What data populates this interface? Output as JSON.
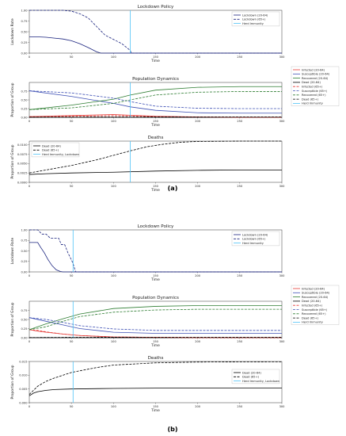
{
  "panel_labels": {
    "a": "(a)",
    "b": "(b)"
  },
  "colors": {
    "dark_blue": "#1a237e",
    "red": "#e53935",
    "blue": "#3f51b5",
    "green": "#2e7d32",
    "black": "#000000",
    "cyan": "#4fc3f7"
  },
  "chart_data": [
    {
      "id": "a_lockdown",
      "type": "line",
      "title": "Lockdown Policy",
      "xlabel": "Time",
      "ylabel": "Lockdown Rate",
      "xlim": [
        0,
        300
      ],
      "ylim": [
        0,
        1.0
      ],
      "xticks": [
        0,
        50,
        100,
        150,
        200,
        250,
        300
      ],
      "yticks": [
        {
          "v": 0.0,
          "t": "0.00"
        },
        {
          "v": 0.25,
          "t": "0.25"
        },
        {
          "v": 0.5,
          "t": "0.50"
        },
        {
          "v": 0.75,
          "t": "0.75"
        },
        {
          "v": 1.0,
          "t": "1.00"
        }
      ],
      "legend": "top-right",
      "series": [
        {
          "name": "Lockdown (20-64)",
          "color": "#1a237e",
          "dash": "",
          "x": [
            0,
            10,
            20,
            30,
            40,
            50,
            60,
            70,
            80,
            85,
            90,
            100,
            200,
            300
          ],
          "y": [
            0.38,
            0.38,
            0.37,
            0.35,
            0.33,
            0.29,
            0.22,
            0.13,
            0.03,
            0,
            0,
            0,
            0,
            0
          ]
        },
        {
          "name": "Lockdown (65+)",
          "color": "#1a237e",
          "dash": "3,1.5",
          "x": [
            0,
            20,
            40,
            50,
            60,
            70,
            80,
            90,
            100,
            110,
            115,
            120,
            121,
            200,
            300
          ],
          "y": [
            1.0,
            1.0,
            1.0,
            0.98,
            0.92,
            0.82,
            0.62,
            0.42,
            0.32,
            0.22,
            0.14,
            0.06,
            0,
            0,
            0
          ]
        }
      ],
      "vline": {
        "name": "Herd Immunity",
        "x": 120,
        "color": "#4fc3f7"
      }
    },
    {
      "id": "a_dynamics",
      "type": "line",
      "title": "Population Dynamics",
      "xlabel": "Time",
      "ylabel": "Proportion of Group",
      "xlim": [
        0,
        300
      ],
      "ylim": [
        0,
        1.0
      ],
      "xticks": [
        0,
        50,
        100,
        150,
        200,
        250,
        300
      ],
      "yticks": [
        {
          "v": 0.0,
          "t": "0.00"
        },
        {
          "v": 0.25,
          "t": "0.25"
        },
        {
          "v": 0.5,
          "t": "0.50"
        },
        {
          "v": 0.75,
          "t": "0.75"
        }
      ],
      "legend": "outside-right",
      "series": [
        {
          "name": "Infected (20-64)",
          "color": "#e53935",
          "dash": "",
          "x": [
            0,
            50,
            100,
            120,
            150,
            200,
            250,
            300
          ],
          "y": [
            0.02,
            0.05,
            0.08,
            0.06,
            0.03,
            0.01,
            0,
            0
          ]
        },
        {
          "name": "Susceptible (20-64)",
          "color": "#3f51b5",
          "dash": "",
          "x": [
            0,
            50,
            100,
            120,
            150,
            200,
            250,
            300
          ],
          "y": [
            0.76,
            0.6,
            0.4,
            0.3,
            0.2,
            0.13,
            0.12,
            0.12
          ]
        },
        {
          "name": "Recovered (20-64)",
          "color": "#2e7d32",
          "dash": "",
          "x": [
            0,
            50,
            100,
            120,
            150,
            200,
            250,
            300
          ],
          "y": [
            0.22,
            0.35,
            0.52,
            0.64,
            0.78,
            0.86,
            0.88,
            0.88
          ]
        },
        {
          "name": "Dead (20-64)",
          "color": "#000000",
          "dash": "",
          "x": [
            0,
            300
          ],
          "y": [
            0.0,
            0.0
          ]
        },
        {
          "name": "Infected (65+)",
          "color": "#e53935",
          "dash": "3,1.5",
          "x": [
            0,
            50,
            100,
            120,
            150,
            200,
            250,
            300
          ],
          "y": [
            0.02,
            0.03,
            0.05,
            0.04,
            0.02,
            0.01,
            0,
            0
          ]
        },
        {
          "name": "Susceptible (65+)",
          "color": "#3f51b5",
          "dash": "3,1.5",
          "x": [
            0,
            50,
            100,
            120,
            150,
            200,
            250,
            300
          ],
          "y": [
            0.76,
            0.7,
            0.55,
            0.45,
            0.32,
            0.26,
            0.25,
            0.25
          ]
        },
        {
          "name": "Recovered (65+)",
          "color": "#2e7d32",
          "dash": "3,1.5",
          "x": [
            0,
            50,
            100,
            120,
            150,
            200,
            250,
            300
          ],
          "y": [
            0.22,
            0.27,
            0.4,
            0.5,
            0.64,
            0.72,
            0.74,
            0.74
          ]
        },
        {
          "name": "Dead (65+)",
          "color": "#000000",
          "dash": "3,1.5",
          "x": [
            0,
            50,
            100,
            150,
            200,
            300
          ],
          "y": [
            0.005,
            0.006,
            0.008,
            0.01,
            0.011,
            0.011
          ]
        }
      ],
      "vline": {
        "name": "Herd Immunity",
        "x": 120,
        "color": "#4fc3f7"
      }
    },
    {
      "id": "a_deaths",
      "type": "line",
      "title": "Deaths",
      "xlabel": "Time",
      "ylabel": "Proportion of Group",
      "xlim": [
        0,
        300
      ],
      "ylim": [
        0,
        0.011
      ],
      "xticks": [
        0,
        50,
        100,
        150,
        200,
        250,
        300
      ],
      "yticks": [
        {
          "v": 0.0,
          "t": "0.0000"
        },
        {
          "v": 0.0025,
          "t": "0.0025"
        },
        {
          "v": 0.005,
          "t": "0.0050"
        },
        {
          "v": 0.0075,
          "t": "0.0075"
        },
        {
          "v": 0.01,
          "t": "0.0100"
        }
      ],
      "legend": "top-left",
      "series": [
        {
          "name": "Dead (20-64)",
          "color": "#000000",
          "dash": "",
          "x": [
            0,
            20,
            50,
            100,
            150,
            200,
            250,
            300
          ],
          "y": [
            0.0021,
            0.0023,
            0.0025,
            0.0027,
            0.003,
            0.0032,
            0.0033,
            0.0033
          ]
        },
        {
          "name": "Dead (65+)",
          "color": "#000000",
          "dash": "3,1.5",
          "x": [
            0,
            20,
            50,
            80,
            100,
            120,
            140,
            160,
            180,
            200,
            250,
            300
          ],
          "y": [
            0.0025,
            0.0033,
            0.0045,
            0.006,
            0.0072,
            0.0084,
            0.0095,
            0.0102,
            0.0107,
            0.0109,
            0.011,
            0.011
          ]
        }
      ],
      "vline": {
        "name": "Herd Immunity, Lockdown",
        "x": 120,
        "color": "#4fc3f7"
      }
    },
    {
      "id": "b_lockdown",
      "type": "line",
      "title": "Lockdown Policy",
      "xlabel": "Time",
      "ylabel": "Lockdown Rate",
      "xlim": [
        0,
        300
      ],
      "ylim": [
        0,
        1.0
      ],
      "xticks": [
        0,
        50,
        100,
        150,
        200,
        250,
        300
      ],
      "yticks": [
        {
          "v": 0.0,
          "t": "0.00"
        },
        {
          "v": 0.25,
          "t": "0.25"
        },
        {
          "v": 0.5,
          "t": "0.50"
        },
        {
          "v": 0.75,
          "t": "0.75"
        },
        {
          "v": 1.0,
          "t": "1.00"
        }
      ],
      "legend": "top-right",
      "series": [
        {
          "name": "Lockdown (20-64)",
          "color": "#1a237e",
          "dash": "",
          "x": [
            0,
            10,
            13,
            18,
            22,
            27,
            32,
            37,
            40,
            300
          ],
          "y": [
            0.7,
            0.7,
            0.6,
            0.45,
            0.3,
            0.15,
            0.05,
            0.01,
            0,
            0
          ]
        },
        {
          "name": "Lockdown (65+)",
          "color": "#1a237e",
          "dash": "3,1.5",
          "x": [
            0,
            10,
            13,
            15,
            20,
            25,
            35,
            38,
            42,
            46,
            49,
            52,
            55,
            300
          ],
          "y": [
            1.0,
            1.0,
            0.94,
            0.9,
            0.9,
            0.8,
            0.8,
            0.65,
            0.65,
            0.45,
            0.33,
            0.2,
            0,
            0
          ]
        }
      ],
      "vline": {
        "name": "Herd Immunity",
        "x": 52,
        "color": "#4fc3f7"
      }
    },
    {
      "id": "b_dynamics",
      "type": "line",
      "title": "Population Dynamics",
      "xlabel": "Time",
      "ylabel": "Proportion of Group",
      "xlim": [
        0,
        300
      ],
      "ylim": [
        0,
        1.0
      ],
      "xticks": [
        0,
        50,
        100,
        150,
        200,
        250,
        300
      ],
      "yticks": [
        {
          "v": 0.0,
          "t": "0.00"
        },
        {
          "v": 0.25,
          "t": "0.25"
        },
        {
          "v": 0.5,
          "t": "0.50"
        },
        {
          "v": 0.75,
          "t": "0.75"
        }
      ],
      "legend": "outside-right",
      "series": [
        {
          "name": "Infected (20-64)",
          "color": "#e53935",
          "dash": "",
          "x": [
            0,
            10,
            20,
            40,
            60,
            100,
            150,
            200,
            300
          ],
          "y": [
            0.22,
            0.18,
            0.15,
            0.1,
            0.06,
            0.02,
            0.01,
            0,
            0
          ]
        },
        {
          "name": "Susceptible (20-64)",
          "color": "#3f51b5",
          "dash": "",
          "x": [
            0,
            20,
            40,
            60,
            100,
            150,
            200,
            300
          ],
          "y": [
            0.55,
            0.45,
            0.35,
            0.25,
            0.15,
            0.12,
            0.12,
            0.12
          ]
        },
        {
          "name": "Recovered (20-64)",
          "color": "#2e7d32",
          "dash": "",
          "x": [
            0,
            20,
            40,
            60,
            100,
            150,
            200,
            300
          ],
          "y": [
            0.22,
            0.38,
            0.52,
            0.65,
            0.8,
            0.86,
            0.88,
            0.88
          ]
        },
        {
          "name": "Dead (20-64)",
          "color": "#000000",
          "dash": "",
          "x": [
            0,
            300
          ],
          "y": [
            0.0,
            0.0
          ]
        },
        {
          "name": "Infected (65+)",
          "color": "#e53935",
          "dash": "3,1.5",
          "x": [
            0,
            10,
            20,
            40,
            60,
            100,
            150,
            200,
            300
          ],
          "y": [
            0.22,
            0.2,
            0.16,
            0.1,
            0.06,
            0.02,
            0.01,
            0,
            0
          ]
        },
        {
          "name": "Susceptible (65+)",
          "color": "#3f51b5",
          "dash": "3,1.5",
          "x": [
            0,
            20,
            40,
            60,
            100,
            150,
            200,
            300
          ],
          "y": [
            0.55,
            0.5,
            0.42,
            0.33,
            0.24,
            0.2,
            0.2,
            0.2
          ]
        },
        {
          "name": "Recovered (65+)",
          "color": "#2e7d32",
          "dash": "3,1.5",
          "x": [
            0,
            20,
            40,
            60,
            100,
            150,
            200,
            300
          ],
          "y": [
            0.22,
            0.3,
            0.45,
            0.58,
            0.7,
            0.76,
            0.78,
            0.78
          ]
        },
        {
          "name": "Dead (65+)",
          "color": "#000000",
          "dash": "3,1.5",
          "x": [
            0,
            50,
            100,
            300
          ],
          "y": [
            0.005,
            0.01,
            0.013,
            0.014
          ]
        }
      ],
      "vline": {
        "name": "Herd Immunity",
        "x": 52,
        "color": "#4fc3f7"
      }
    },
    {
      "id": "b_deaths",
      "type": "line",
      "title": "Deaths",
      "xlabel": "Time",
      "ylabel": "Proportion of Group",
      "xlim": [
        0,
        300
      ],
      "ylim": [
        0,
        0.015
      ],
      "xticks": [
        0,
        50,
        100,
        150,
        200,
        250,
        300
      ],
      "yticks": [
        {
          "v": 0.0,
          "t": "0.000"
        },
        {
          "v": 0.005,
          "t": "0.005"
        },
        {
          "v": 0.01,
          "t": "0.010"
        },
        {
          "v": 0.015,
          "t": "0.015"
        }
      ],
      "legend": "right",
      "series": [
        {
          "name": "Dead (20-64)",
          "color": "#000000",
          "dash": "",
          "x": [
            0,
            5,
            10,
            20,
            30,
            50,
            100,
            150,
            200,
            300
          ],
          "y": [
            0.0025,
            0.0035,
            0.004,
            0.0045,
            0.0048,
            0.005,
            0.0052,
            0.0053,
            0.0053,
            0.0053
          ]
        },
        {
          "name": "Dead (65+)",
          "color": "#000000",
          "dash": "3,1.5",
          "x": [
            0,
            5,
            10,
            20,
            30,
            50,
            80,
            100,
            150,
            200,
            300
          ],
          "y": [
            0.003,
            0.0045,
            0.006,
            0.0078,
            0.009,
            0.011,
            0.0128,
            0.0137,
            0.0145,
            0.0148,
            0.0149
          ]
        }
      ],
      "vline": {
        "name": "Herd Immunity, Lockdown",
        "x": 52,
        "color": "#4fc3f7"
      }
    }
  ]
}
